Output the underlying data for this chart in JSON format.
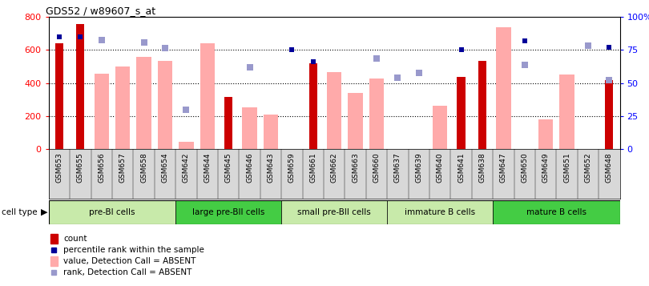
{
  "title": "GDS52 / w89607_s_at",
  "samples": [
    "GSM653",
    "GSM655",
    "GSM656",
    "GSM657",
    "GSM658",
    "GSM654",
    "GSM642",
    "GSM644",
    "GSM645",
    "GSM646",
    "GSM643",
    "GSM659",
    "GSM661",
    "GSM662",
    "GSM663",
    "GSM660",
    "GSM637",
    "GSM639",
    "GSM640",
    "GSM641",
    "GSM638",
    "GSM647",
    "GSM650",
    "GSM649",
    "GSM651",
    "GSM652",
    "GSM648"
  ],
  "count_values": [
    640,
    760,
    null,
    null,
    null,
    null,
    null,
    null,
    315,
    null,
    null,
    null,
    520,
    null,
    null,
    null,
    null,
    null,
    null,
    435,
    535,
    null,
    null,
    null,
    null,
    null,
    415
  ],
  "absent_values": [
    null,
    null,
    455,
    500,
    560,
    535,
    40,
    640,
    null,
    250,
    210,
    null,
    null,
    465,
    340,
    425,
    null,
    null,
    260,
    null,
    null,
    740,
    null,
    180,
    450,
    null,
    null
  ],
  "absent_rank": [
    null,
    null,
    660,
    null,
    645,
    610,
    235,
    null,
    null,
    495,
    null,
    null,
    null,
    null,
    null,
    550,
    430,
    460,
    null,
    null,
    null,
    null,
    510,
    null,
    null,
    625,
    415
  ],
  "percentile_dark": [
    85,
    85,
    null,
    null,
    null,
    null,
    null,
    null,
    null,
    null,
    null,
    75,
    66,
    null,
    null,
    null,
    null,
    null,
    null,
    75,
    null,
    null,
    82,
    null,
    null,
    null,
    77
  ],
  "cell_groups": [
    {
      "label": "pre-BI cells",
      "start": 0,
      "end": 6,
      "color": "#c8eaaa"
    },
    {
      "label": "large pre-BII cells",
      "start": 6,
      "end": 11,
      "color": "#44cc44"
    },
    {
      "label": "small pre-BII cells",
      "start": 11,
      "end": 16,
      "color": "#c8eaaa"
    },
    {
      "label": "immature B cells",
      "start": 16,
      "end": 21,
      "color": "#c8eaaa"
    },
    {
      "label": "mature B cells",
      "start": 21,
      "end": 27,
      "color": "#44cc44"
    }
  ],
  "ylim": [
    0,
    800
  ],
  "yticks": [
    0,
    200,
    400,
    600,
    800
  ],
  "y2ticks_vals": [
    0,
    25,
    50,
    75,
    100
  ],
  "y2ticks_labels": [
    "0",
    "25",
    "50",
    "75",
    "100%"
  ],
  "bar_color_count": "#cc0000",
  "bar_color_absent": "#ffaaaa",
  "dot_color_dark": "#000099",
  "dot_color_light": "#9999cc",
  "xticklabel_bg": "#d8d8d8"
}
